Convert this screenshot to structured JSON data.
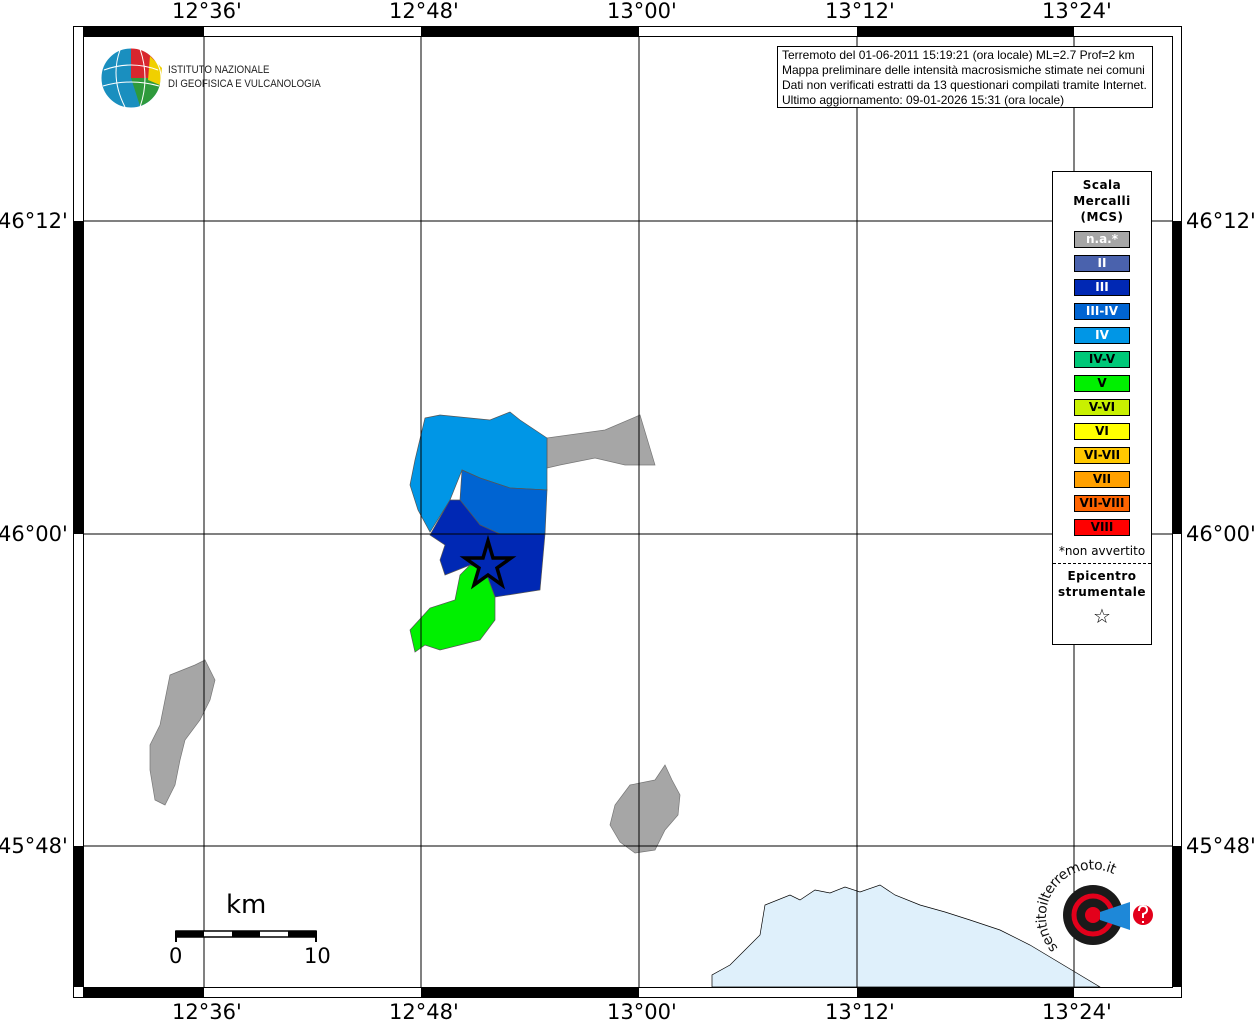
{
  "map": {
    "lon_ticks": [
      "12°36'",
      "12°48'",
      "13°00'",
      "13°12'",
      "13°24'"
    ],
    "lat_ticks": [
      "46°12'",
      "46°00'",
      "45°48'"
    ],
    "colors": {
      "water": "#dff0fb",
      "not_felt": "#a6a6a6",
      "grid": "#000000"
    }
  },
  "info_box": {
    "lines": [
      "Terremoto del 01-06-2011 15:19:21 (ora locale) ML=2.7 Prof=2 km",
      "Mappa preliminare delle intensità macrosismiche stimate nei comuni",
      "Dati non verificati estratti da 13 questionari compilati tramite Internet.",
      "Ultimo aggiornamento: 09-01-2026 15:31 (ora locale)"
    ]
  },
  "legend": {
    "title_lines": [
      "Scala",
      "Mercalli",
      "(MCS)"
    ],
    "items": [
      {
        "label": "n.a.*",
        "color": "#a6a6a6",
        "text_color": "#ffffff"
      },
      {
        "label": "II",
        "color": "#4a62ad",
        "text_color": "#ffffff"
      },
      {
        "label": "III",
        "color": "#0028b4",
        "text_color": "#ffffff"
      },
      {
        "label": "III-IV",
        "color": "#0064d2",
        "text_color": "#ffffff"
      },
      {
        "label": "IV",
        "color": "#0096e6",
        "text_color": "#ffffff"
      },
      {
        "label": "IV-V",
        "color": "#00c878",
        "text_color": "#000000"
      },
      {
        "label": "V",
        "color": "#00f000",
        "text_color": "#000000"
      },
      {
        "label": "V-VI",
        "color": "#c8f000",
        "text_color": "#000000"
      },
      {
        "label": "VI",
        "color": "#ffff00",
        "text_color": "#000000"
      },
      {
        "label": "VI-VII",
        "color": "#ffc800",
        "text_color": "#000000"
      },
      {
        "label": "VII",
        "color": "#ffa000",
        "text_color": "#000000"
      },
      {
        "label": "VII-VIII",
        "color": "#ff6400",
        "text_color": "#000000"
      },
      {
        "label": "VIII",
        "color": "#ff0000",
        "text_color": "#000000"
      }
    ],
    "note": "*non avvertito",
    "epicenter_lines": [
      "Epicentro",
      "strumentale"
    ],
    "epicenter_icon": "star-outline-icon"
  },
  "scale_bar": {
    "unit": "km",
    "start": "0",
    "end": "10"
  },
  "logos": {
    "ingv": [
      "ISTITUTO NAZIONALE",
      "DI GEOFISICA E VULCANOLOGIA"
    ],
    "hsit": "www.haisentitoilterremoto.it"
  }
}
